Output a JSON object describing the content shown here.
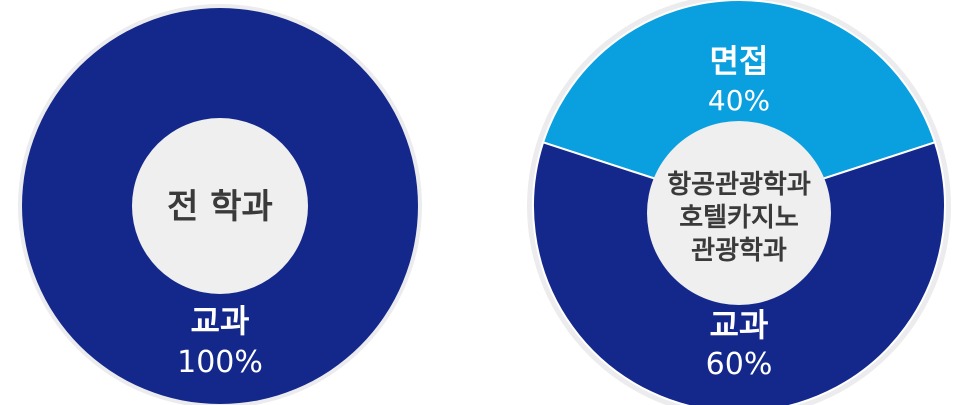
{
  "colors": {
    "outer_ring": "#ececee",
    "dark_blue": "#14288c",
    "light_blue": "#0aa0e0",
    "center": "#efefef",
    "label_white": "#ffffff",
    "center_text": "#3a3a3a"
  },
  "chart_data": [
    {
      "type": "pie",
      "center_label": "전 학과",
      "slices": [
        {
          "label": "교과",
          "value": 100,
          "value_label": "100%",
          "color": "#14288c"
        }
      ]
    },
    {
      "type": "pie",
      "center_label_lines": [
        "항공관광학과",
        "호텔카지노",
        "관광학과"
      ],
      "slices": [
        {
          "label": "면접",
          "value": 40,
          "value_label": "40%",
          "color": "#0aa0e0"
        },
        {
          "label": "교과",
          "value": 60,
          "value_label": "60%",
          "color": "#14288c"
        }
      ]
    }
  ]
}
